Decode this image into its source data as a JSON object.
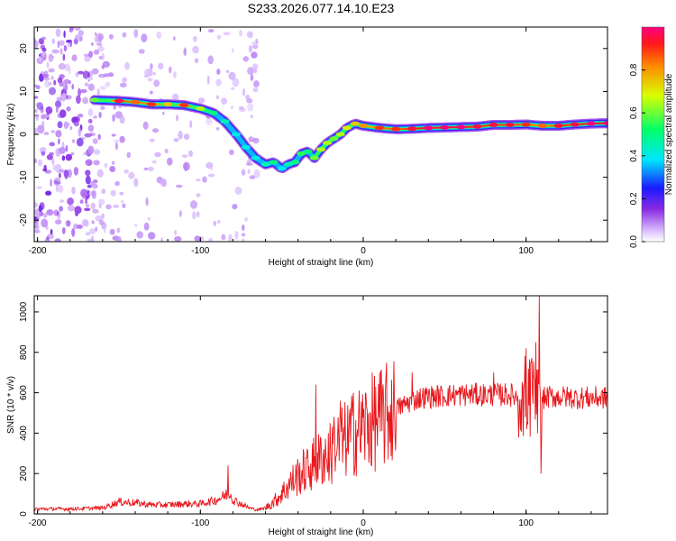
{
  "figure_title": "S233.2026.077.14.10.E23",
  "chart_data": [
    {
      "type": "heatmap",
      "title": "S233.2026.077.14.10.E23",
      "xlabel": "Height of straight line (km)",
      "ylabel": "Frequency (Hz)",
      "xlim": [
        -202,
        150
      ],
      "ylim": [
        -25,
        25
      ],
      "xticks": [
        -200,
        -100,
        0,
        100
      ],
      "yticks": [
        -20,
        -10,
        0,
        10,
        20
      ],
      "colorbar": {
        "label": "Normalized spectral amplitude",
        "range": [
          0,
          1
        ],
        "ticks": [
          "0.0",
          "0.2",
          "0.4",
          "0.6",
          "0.8"
        ]
      },
      "ridge": {
        "x": [
          -165,
          -150,
          -140,
          -130,
          -120,
          -110,
          -100,
          -92,
          -85,
          -78,
          -72,
          -66,
          -60,
          -55,
          -50,
          -46,
          -42,
          -38,
          -34,
          -30,
          -26,
          -22,
          -18,
          -14,
          -10,
          -5,
          0,
          10,
          20,
          30,
          40,
          50,
          60,
          70,
          80,
          90,
          100,
          110,
          120,
          130,
          140,
          150
        ],
        "y": [
          8,
          7.8,
          7.5,
          7,
          7,
          6.8,
          6,
          5,
          3,
          0,
          -3,
          -5.5,
          -7,
          -6.5,
          -8,
          -7,
          -6.5,
          -4.5,
          -4,
          -5.5,
          -3.5,
          -2,
          -1,
          0,
          1.5,
          2.5,
          2,
          1.5,
          1.2,
          1.3,
          1.5,
          1.6,
          1.7,
          1.8,
          2.2,
          2.2,
          2.3,
          2,
          2,
          2.3,
          2.5,
          2.6
        ],
        "amplitude": [
          0.55,
          0.9,
          0.8,
          0.85,
          0.7,
          0.85,
          0.6,
          0.45,
          0.4,
          0.35,
          0.35,
          0.35,
          0.4,
          0.45,
          0.35,
          0.4,
          0.45,
          0.5,
          0.45,
          0.55,
          0.6,
          0.6,
          0.55,
          0.6,
          0.65,
          0.7,
          0.75,
          0.85,
          0.85,
          0.9,
          0.95,
          0.95,
          0.95,
          0.9,
          0.9,
          0.9,
          0.85,
          0.8,
          0.9,
          0.9,
          0.95,
          0.95
        ]
      },
      "noise_region_x": [
        -202,
        -65
      ]
    },
    {
      "type": "line",
      "xlabel": "Height of straight line (km)",
      "ylabel": "SNR (10 * v/v)",
      "xlim": [
        -202,
        150
      ],
      "ylim": [
        0,
        1080
      ],
      "xticks": [
        -200,
        -100,
        0,
        100
      ],
      "yticks": [
        0,
        200,
        400,
        600,
        800,
        1000
      ],
      "series": [
        {
          "name": "SNR",
          "color": "#e8161b",
          "x": [
            -202,
            -180,
            -160,
            -150,
            -140,
            -130,
            -120,
            -110,
            -100,
            -95,
            -90,
            -85,
            -82,
            -80,
            -75,
            -70,
            -65,
            -60,
            -55,
            -50,
            -45,
            -40,
            -35,
            -30,
            -25,
            -20,
            -15,
            -10,
            -5,
            0,
            5,
            10,
            15,
            20,
            25,
            30,
            35,
            40,
            50,
            60,
            70,
            80,
            90,
            95,
            100,
            105,
            108,
            110,
            115,
            120,
            130,
            140,
            150
          ],
          "y": [
            25,
            25,
            30,
            60,
            55,
            45,
            45,
            50,
            50,
            60,
            70,
            90,
            110,
            70,
            50,
            30,
            20,
            30,
            60,
            100,
            150,
            190,
            220,
            250,
            280,
            300,
            340,
            370,
            400,
            430,
            450,
            470,
            490,
            520,
            540,
            560,
            575,
            580,
            585,
            590,
            590,
            590,
            590,
            580,
            590,
            560,
            520,
            570,
            580,
            580,
            575,
            575,
            575
          ]
        }
      ],
      "peaks": {
        "x": [
          -83,
          -50,
          -34,
          -29,
          -18,
          -14,
          -6,
          30,
          80,
          100,
          103,
          106,
          108,
          109
        ],
        "y": [
          240,
          120,
          310,
          640,
          480,
          560,
          600,
          700,
          700,
          820,
          750,
          850,
          1080,
          200
        ]
      }
    }
  ]
}
